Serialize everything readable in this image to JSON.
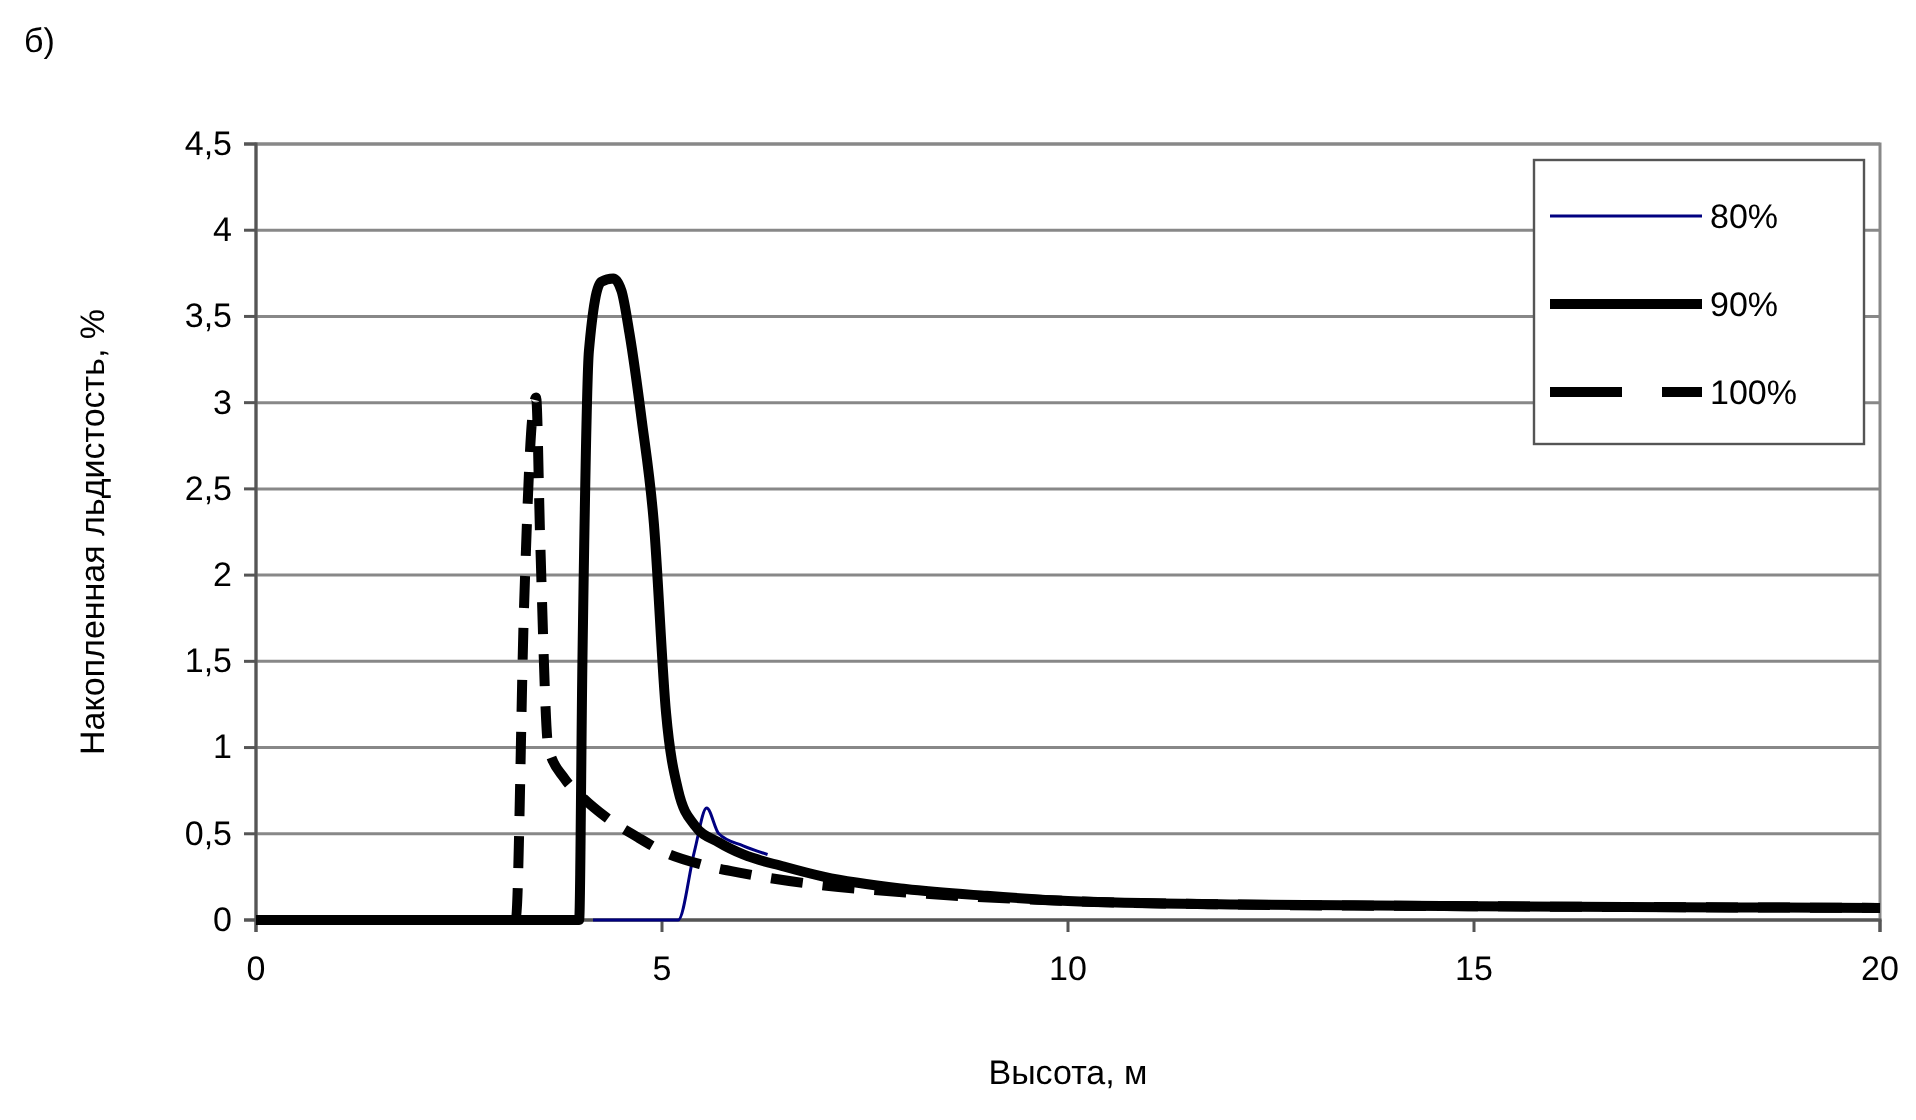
{
  "chart_data": {
    "type": "line",
    "xlabel": "Высота, м",
    "ylabel": "Накопленная льдистость, %",
    "annotations": [
      "б)"
    ],
    "xlim": [
      0,
      20
    ],
    "xticks": [
      0,
      5,
      10,
      15,
      20
    ],
    "ylim": [
      0,
      4.5
    ],
    "yticks": [
      0,
      {
        "value": 0.5,
        "label": "0,5"
      },
      1,
      {
        "value": 1.5,
        "label": "1,5"
      },
      2,
      {
        "value": 2.5,
        "label": "2,5"
      },
      3,
      {
        "value": 3.5,
        "label": "3,5"
      },
      4,
      {
        "value": 4.5,
        "label": "4,5"
      }
    ],
    "grid": "y",
    "legend": "top right",
    "series": [
      {
        "name": "80%",
        "color": "#000080",
        "line_style": "solid",
        "x": [
          4.15,
          5.2,
          5.4,
          5.55,
          5.7,
          6,
          6.3
        ],
        "values": [
          0,
          0,
          0.4,
          0.65,
          0.5,
          0.43,
          0.38
        ]
      },
      {
        "name": "90%",
        "color": "#000000",
        "line_style": "solid",
        "x": [
          0,
          3.98,
          4.02,
          4.1,
          4.25,
          4.4,
          4.5,
          4.6,
          4.75,
          4.9,
          5.05,
          5.2,
          5.4,
          5.7,
          6,
          6.5,
          7,
          8,
          9,
          10,
          12,
          15,
          20
        ],
        "values": [
          0,
          0,
          1.5,
          3.3,
          3.7,
          3.72,
          3.65,
          3.4,
          2.9,
          2.3,
          1.2,
          0.75,
          0.55,
          0.45,
          0.38,
          0.31,
          0.25,
          0.18,
          0.14,
          0.11,
          0.09,
          0.08,
          0.07
        ]
      },
      {
        "name": "100%",
        "color": "#000000",
        "line_style": "dashed",
        "x": [
          0,
          3.2,
          3.3,
          3.4,
          3.45,
          3.5,
          3.6,
          3.8,
          4,
          4.3,
          4.7,
          5,
          5.5,
          6,
          7,
          8,
          10,
          12,
          15,
          20
        ],
        "values": [
          0,
          0,
          1.8,
          2.9,
          3.03,
          2.2,
          1.0,
          0.82,
          0.72,
          0.6,
          0.48,
          0.4,
          0.32,
          0.27,
          0.2,
          0.16,
          0.11,
          0.09,
          0.08,
          0.07
        ]
      }
    ]
  }
}
